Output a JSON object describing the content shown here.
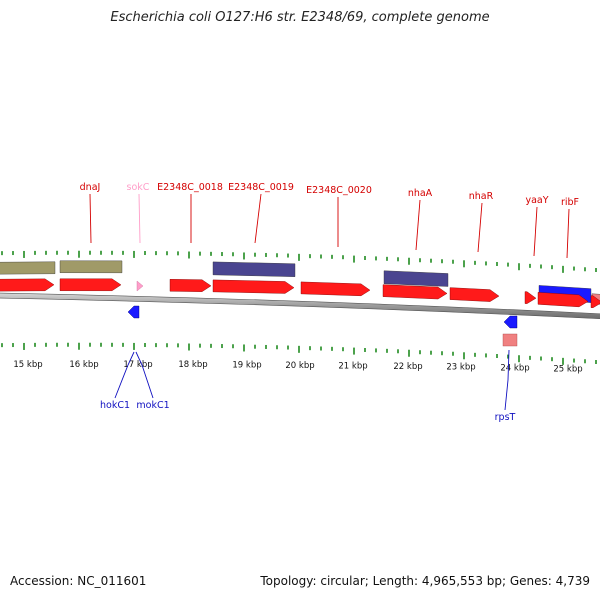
{
  "title": "Escherichia coli O127:H6 str. E2348/69, complete genome",
  "footer": {
    "accession": "Accession: NC_011601",
    "topology": "Topology: circular; Length: 4,965,553 bp; Genes: 4,739"
  },
  "colors": {
    "gene_red": "#ff1a1a",
    "olive": "#a09a68",
    "navy": "#4a4590",
    "blue": "#1a1aff",
    "pink": "#ff9ec9",
    "salmon": "#f08080",
    "tick_green": "#1f8a1f",
    "label_red": "#d40000",
    "label_blue": "#1010c0",
    "label_pink": "#ff9ec9"
  },
  "scale": {
    "unit": "kbp",
    "tick_labels": [
      "15 kbp",
      "16 kbp",
      "17 kbp",
      "18 kbp",
      "19 kbp",
      "20 kbp",
      "21 kbp",
      "22 kbp",
      "23 kbp",
      "24 kbp",
      "25 kbp"
    ]
  },
  "features": {
    "upper_labels": [
      {
        "name": "dnaJ",
        "color": "label_red"
      },
      {
        "name": "sokC",
        "color": "label_pink"
      },
      {
        "name": "E2348C_0018",
        "color": "label_red"
      },
      {
        "name": "E2348C_0019",
        "color": "label_red"
      },
      {
        "name": "E2348C_0020",
        "color": "label_red"
      },
      {
        "name": "nhaA",
        "color": "label_red"
      },
      {
        "name": "nhaR",
        "color": "label_red"
      },
      {
        "name": "yaaY",
        "color": "label_red"
      },
      {
        "name": "ribF",
        "color": "label_red"
      }
    ],
    "lower_labels": [
      {
        "name": "hokC1",
        "color": "label_blue"
      },
      {
        "name": "mokC1",
        "color": "label_blue"
      },
      {
        "name": "rpsT",
        "color": "label_blue"
      }
    ]
  }
}
